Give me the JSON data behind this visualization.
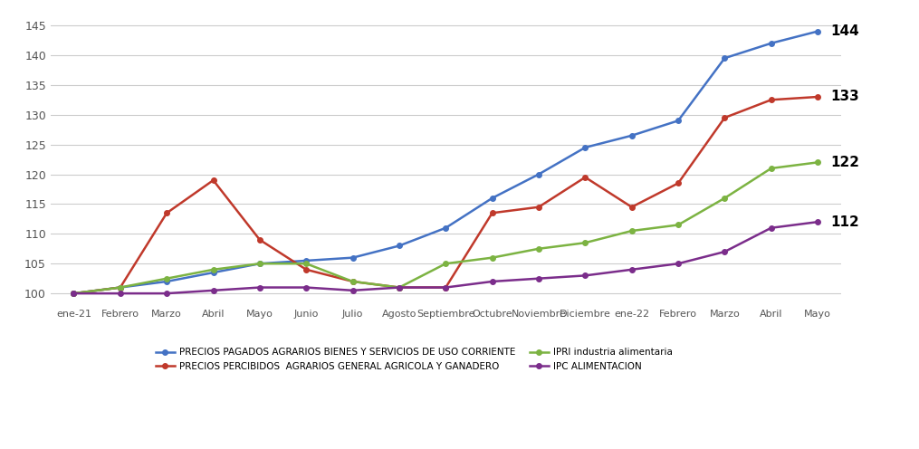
{
  "x_labels": [
    "ene-21",
    "Febrero",
    "Marzo",
    "Abril",
    "Mayo",
    "Junio",
    "Julio",
    "Agosto",
    "Septiembre",
    "Octubre",
    "Noviembre",
    "Diciembre",
    "ene-22",
    "Febrero",
    "Marzo",
    "Abril",
    "Mayo"
  ],
  "series": {
    "blue": {
      "label": "PRECIOS PAGADOS AGRARIOS BIENES Y SERVICIOS DE USO CORRIENTE",
      "color": "#4472C4",
      "values": [
        100,
        101,
        102,
        103.5,
        105,
        105.5,
        106,
        108,
        111,
        116,
        120,
        124.5,
        126.5,
        129,
        139.5,
        142,
        144
      ]
    },
    "red": {
      "label": "PRECIOS PERCIBIDOS  AGRARIOS GENERAL AGRICOLA Y GANADERO",
      "color": "#C0392B",
      "values": [
        100,
        101,
        113.5,
        119,
        109,
        104,
        102,
        101,
        101,
        113.5,
        114.5,
        119.5,
        114.5,
        118.5,
        129.5,
        132.5,
        133
      ]
    },
    "green": {
      "label": "IPRI industria alimentaria",
      "color": "#7CB342",
      "values": [
        100,
        101,
        102.5,
        104,
        105,
        105,
        102,
        101,
        105,
        106,
        107.5,
        108.5,
        110.5,
        111.5,
        116,
        121,
        122
      ]
    },
    "purple": {
      "label": "IPC ALIMENTACION",
      "color": "#7B2D8B",
      "values": [
        100,
        100,
        100,
        100.5,
        101,
        101,
        100.5,
        101,
        101,
        102,
        102.5,
        103,
        104,
        105,
        107,
        111,
        112
      ]
    }
  },
  "end_labels": {
    "blue": "144",
    "red": "133",
    "green": "122",
    "purple": "112"
  },
  "ylim": [
    98,
    147
  ],
  "yticks": [
    100,
    105,
    110,
    115,
    120,
    125,
    130,
    135,
    140,
    145
  ],
  "background_color": "#FFFFFF",
  "grid_color": "#CCCCCC",
  "legend_order": [
    "blue",
    "red",
    "green",
    "purple"
  ]
}
